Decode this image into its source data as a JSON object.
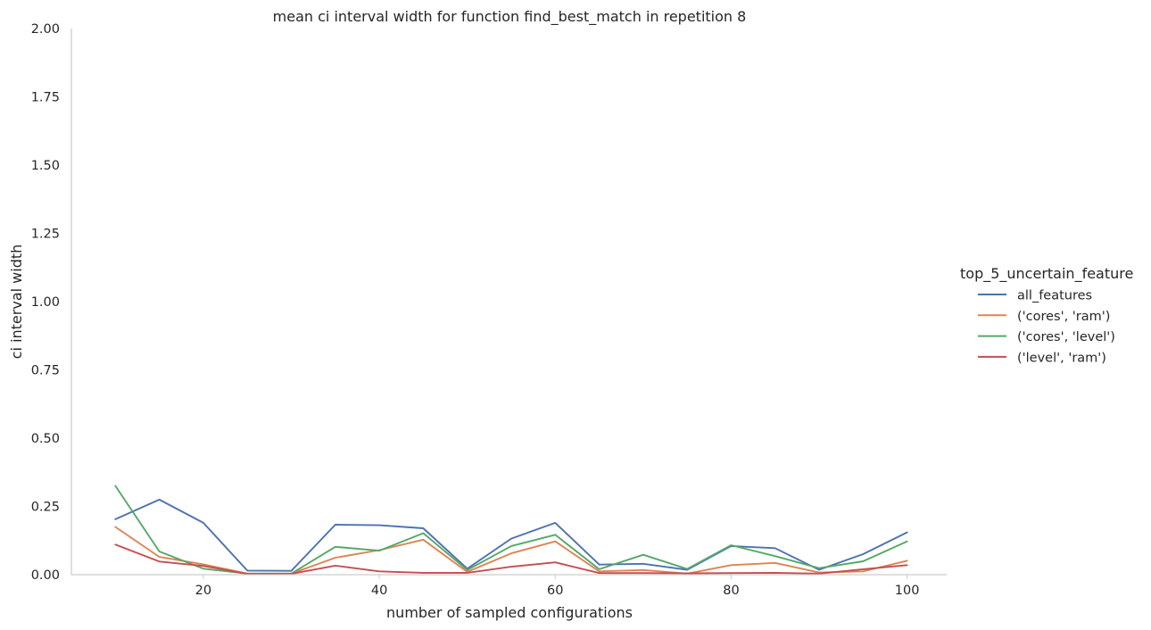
{
  "chart_data": {
    "type": "line",
    "title": "mean ci interval width for function find_best_match in repetition 8",
    "xlabel": "number of sampled configurations",
    "ylabel": "ci interval width",
    "xlim": [
      5,
      104.5
    ],
    "ylim": [
      0,
      2.0
    ],
    "xticks": [
      "20",
      "40",
      "60",
      "80",
      "100"
    ],
    "yticks": [
      "0.00",
      "0.25",
      "0.50",
      "0.75",
      "1.00",
      "1.25",
      "1.50",
      "1.75",
      "2.00"
    ],
    "grid": false,
    "legend": {
      "title": "top_5_uncertain_feature",
      "placement": "center-right outside"
    },
    "x": [
      10,
      15,
      20,
      25,
      30,
      35,
      40,
      45,
      50,
      55,
      60,
      65,
      70,
      75,
      80,
      85,
      90,
      95,
      100
    ],
    "series": [
      {
        "name": "all_features",
        "color": "#4c72b0",
        "values": [
          0.203,
          0.275,
          0.19,
          0.015,
          0.014,
          0.183,
          0.181,
          0.17,
          0.022,
          0.132,
          0.19,
          0.037,
          0.04,
          0.018,
          0.105,
          0.097,
          0.018,
          0.075,
          0.155
        ]
      },
      {
        "name": "('cores', 'ram')",
        "color": "#dd8452",
        "values": [
          0.175,
          0.065,
          0.038,
          0.004,
          0.004,
          0.062,
          0.09,
          0.128,
          0.01,
          0.078,
          0.122,
          0.012,
          0.017,
          0.004,
          0.035,
          0.043,
          0.008,
          0.012,
          0.051
        ]
      },
      {
        "name": "('cores', 'level')",
        "color": "#55a868",
        "values": [
          0.325,
          0.085,
          0.022,
          0.004,
          0.004,
          0.102,
          0.088,
          0.152,
          0.017,
          0.105,
          0.146,
          0.02,
          0.073,
          0.021,
          0.108,
          0.068,
          0.024,
          0.049,
          0.122
        ]
      },
      {
        "name": "('level', 'ram')",
        "color": "#c44e52",
        "values": [
          0.11,
          0.048,
          0.032,
          0.003,
          0.003,
          0.033,
          0.012,
          0.007,
          0.007,
          0.029,
          0.045,
          0.006,
          0.006,
          0.005,
          0.006,
          0.007,
          0.004,
          0.02,
          0.035
        ]
      }
    ]
  }
}
